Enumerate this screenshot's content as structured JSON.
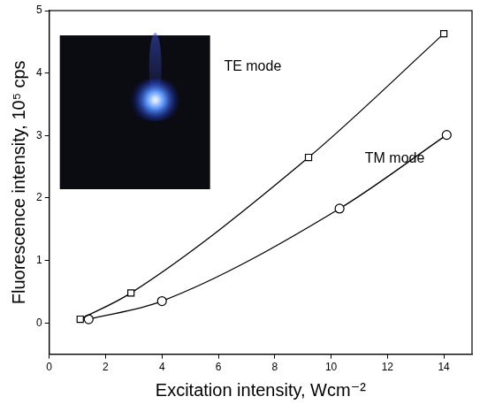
{
  "chart_data": {
    "type": "scatter",
    "x_label": "Excitation intensity, Wcm⁻²",
    "y_label": "Fluorescence intensity, 10⁵ cps",
    "xlim": [
      0,
      15
    ],
    "xticks": [
      0,
      2,
      4,
      6,
      8,
      10,
      12,
      14
    ],
    "ylim": [
      -0.5,
      5
    ],
    "yticks": [
      0,
      1,
      2,
      3,
      4,
      5
    ],
    "grid": false,
    "series": [
      {
        "name": "TE mode",
        "color": "#000000",
        "marker": "square",
        "line_style": "solid",
        "x": [
          1.1,
          2.9,
          9.2,
          14.0
        ],
        "values": [
          0.06,
          0.48,
          2.65,
          4.63
        ]
      },
      {
        "name": "TM mode",
        "color": "#000000",
        "marker": "circle",
        "line_style": "solid",
        "x": [
          1.4,
          4.0,
          10.3,
          14.1
        ],
        "values": [
          0.06,
          0.35,
          1.83,
          3.01
        ]
      }
    ]
  }
}
